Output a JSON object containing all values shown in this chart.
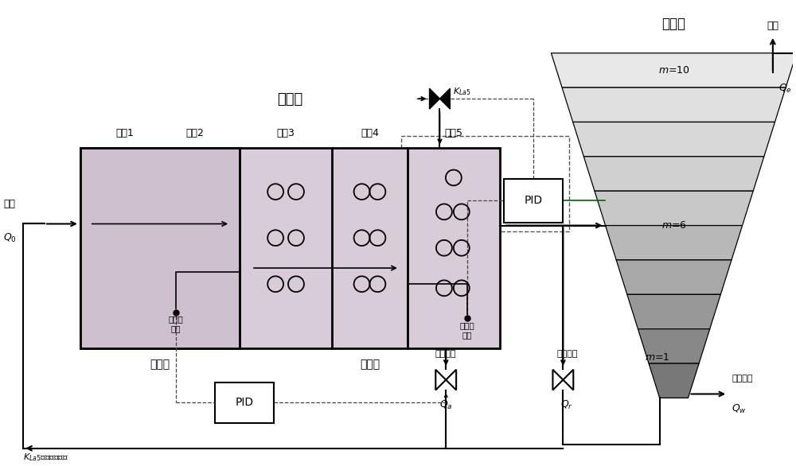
{
  "bg_color": "#ffffff",
  "tank_color": "#d0c8d0",
  "tank_unit12_color": "#c8b8c8",
  "settler_colors": [
    "#e8e8e8",
    "#e0e0e0",
    "#d8d8d8",
    "#d0d0d0",
    "#c8c8c8",
    "#b8b8b8",
    "#a8a8a8",
    "#989898",
    "#888888",
    "#787878"
  ],
  "title_biochem": "生化池",
  "title_settler": "二沉池",
  "label_unit1": "单元1",
  "label_unit2": "单元2",
  "label_unit3": "单元3",
  "label_unit4": "单元4",
  "label_unit5": "单元5",
  "label_sewage": "污水",
  "label_Q0": "$Q_0$",
  "label_KLa5_valve": "$K_{La5}$",
  "label_PID1": "PID",
  "label_PID2": "PID",
  "label_anoxic": "缺氧区",
  "label_aerobic": "好氧区",
  "label_nitrate": "硝态氮\n浓度",
  "label_DO": "溶解氧\n浓度",
  "label_KLa_desc": "$K_{La5}$氧气转换系数",
  "label_internal": "内回流量",
  "label_Qa": "$Q_a$",
  "label_external": "外回流量",
  "label_Qr": "$Q_r$",
  "label_effluent": "出水",
  "label_Qe": "$Q_e$",
  "label_sludge": "污泥排放",
  "label_Qw": "$Q_w$",
  "label_m10": "$m$=10",
  "label_m6": "$m$=6",
  "label_m1": "$m$=1"
}
